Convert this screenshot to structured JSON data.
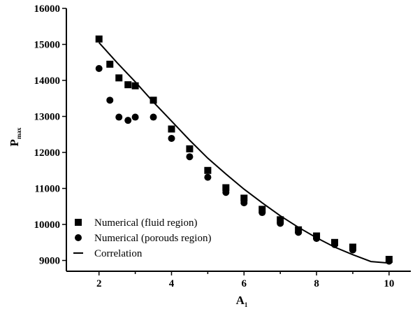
{
  "chart_data": {
    "type": "scatter",
    "xlabel": {
      "main": "A",
      "sub": "1"
    },
    "ylabel": {
      "main": "P",
      "sub": "max"
    },
    "xlim": [
      1.1,
      10.6
    ],
    "ylim": [
      8700,
      16000
    ],
    "xticks": [
      2,
      4,
      6,
      8,
      10
    ],
    "yticks": [
      9000,
      10000,
      11000,
      12000,
      13000,
      14000,
      15000,
      16000
    ],
    "grid": false,
    "legend_position": "bottom-left",
    "series": [
      {
        "name": "Numerical (fluid region)",
        "marker": "square",
        "x": [
          2.0,
          2.3,
          2.55,
          2.8,
          3.0,
          3.5,
          4.0,
          4.5,
          5.0,
          5.5,
          6.0,
          6.5,
          7.0,
          7.5,
          8.0,
          8.5,
          9.0,
          10.0
        ],
        "y": [
          15150,
          14450,
          14070,
          13880,
          13850,
          13450,
          12650,
          12100,
          11500,
          11020,
          10730,
          10420,
          10130,
          9850,
          9680,
          9500,
          9370,
          9030
        ]
      },
      {
        "name": "Numerical (porouds region)",
        "marker": "circle",
        "x": [
          2.0,
          2.3,
          2.55,
          2.8,
          3.0,
          3.5,
          4.0,
          4.5,
          5.0,
          5.5,
          6.0,
          6.5,
          7.0,
          7.5,
          8.0,
          8.5,
          9.0,
          10.0
        ],
        "y": [
          14330,
          13450,
          12980,
          12890,
          12980,
          12980,
          12390,
          11880,
          11310,
          10890,
          10600,
          10330,
          10030,
          9780,
          9610,
          9440,
          9290,
          8980
        ]
      },
      {
        "name": "Correlation",
        "marker": "line",
        "x": [
          2.0,
          2.5,
          3.0,
          3.5,
          4.0,
          4.5,
          5.0,
          5.5,
          6.0,
          6.5,
          7.0,
          7.5,
          8.0,
          8.5,
          9.0,
          9.5,
          10.0
        ],
        "y": [
          15050,
          14490,
          13960,
          13400,
          12870,
          12340,
          11840,
          11400,
          10980,
          10600,
          10240,
          9920,
          9630,
          9370,
          9160,
          8970,
          8930
        ]
      }
    ]
  }
}
